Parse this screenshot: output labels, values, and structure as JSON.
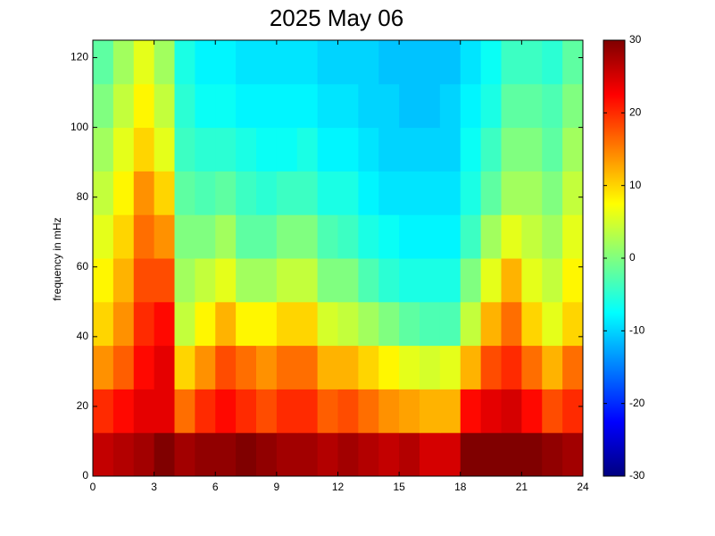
{
  "chart_data": {
    "type": "heatmap",
    "title": "2025 May 06",
    "y_label": "frequency in mHz",
    "colormap": "jet",
    "x": [
      0.5,
      1.5,
      2.5,
      3.5,
      4.5,
      5.5,
      6.5,
      7.5,
      8.5,
      9.5,
      10.5,
      11.5,
      12.5,
      13.5,
      14.5,
      15.5,
      16.5,
      17.5,
      18.5,
      19.5,
      20.5,
      21.5,
      22.5,
      23.5
    ],
    "y": [
      6.25,
      18.75,
      31.25,
      43.75,
      56.25,
      68.75,
      81.25,
      93.75,
      106.25,
      118.75
    ],
    "z": [
      [
        26,
        27,
        28,
        30,
        28,
        29,
        29,
        30,
        29,
        28,
        28,
        27,
        28,
        27,
        26,
        27,
        25,
        25,
        30,
        30,
        30,
        30,
        29,
        28
      ],
      [
        20,
        22,
        24,
        24,
        16,
        20,
        22,
        20,
        18,
        20,
        20,
        17,
        18,
        16,
        14,
        13,
        12,
        12,
        22,
        24,
        25,
        22,
        18,
        20
      ],
      [
        14,
        17,
        22,
        24,
        10,
        14,
        18,
        16,
        14,
        16,
        16,
        12,
        12,
        10,
        8,
        6,
        5,
        6,
        12,
        18,
        20,
        16,
        12,
        16
      ],
      [
        10,
        14,
        20,
        22,
        4,
        8,
        12,
        8,
        8,
        10,
        10,
        5,
        4,
        2,
        0,
        -2,
        -3,
        -3,
        4,
        12,
        16,
        10,
        6,
        10
      ],
      [
        8,
        12,
        18,
        18,
        2,
        4,
        6,
        2,
        2,
        4,
        4,
        0,
        0,
        -3,
        -5,
        -6,
        -6,
        -6,
        0,
        6,
        12,
        6,
        4,
        8
      ],
      [
        6,
        10,
        16,
        14,
        0,
        0,
        2,
        -2,
        -2,
        0,
        0,
        -3,
        -4,
        -6,
        -7,
        -8,
        -8,
        -8,
        -4,
        2,
        6,
        4,
        2,
        6
      ],
      [
        4,
        8,
        14,
        10,
        -2,
        -3,
        -2,
        -4,
        -5,
        -4,
        -4,
        -6,
        -6,
        -8,
        -9,
        -9,
        -9,
        -9,
        -6,
        -2,
        2,
        2,
        0,
        4
      ],
      [
        2,
        6,
        10,
        6,
        -4,
        -5,
        -5,
        -6,
        -7,
        -7,
        -6,
        -8,
        -8,
        -9,
        -10,
        -10,
        -10,
        -10,
        -7,
        -4,
        0,
        0,
        -2,
        2
      ],
      [
        0,
        4,
        8,
        4,
        -5,
        -7,
        -7,
        -8,
        -8,
        -8,
        -8,
        -9,
        -9,
        -10,
        -10,
        -11,
        -11,
        -10,
        -8,
        -6,
        -2,
        -2,
        -3,
        0
      ],
      [
        -2,
        2,
        6,
        2,
        -6,
        -8,
        -8,
        -9,
        -9,
        -9,
        -9,
        -10,
        -10,
        -10,
        -11,
        -11,
        -11,
        -11,
        -9,
        -7,
        -4,
        -4,
        -5,
        -2
      ]
    ],
    "xlim": [
      0,
      24
    ],
    "xticks": [
      0,
      3,
      6,
      9,
      12,
      15,
      18,
      21,
      24
    ],
    "ylim": [
      0,
      125
    ],
    "yticks": [
      0,
      20,
      40,
      60,
      80,
      100,
      120
    ],
    "zlim": [
      -30,
      30
    ],
    "zticks": [
      -30,
      -20,
      -10,
      0,
      10,
      20,
      30
    ]
  }
}
